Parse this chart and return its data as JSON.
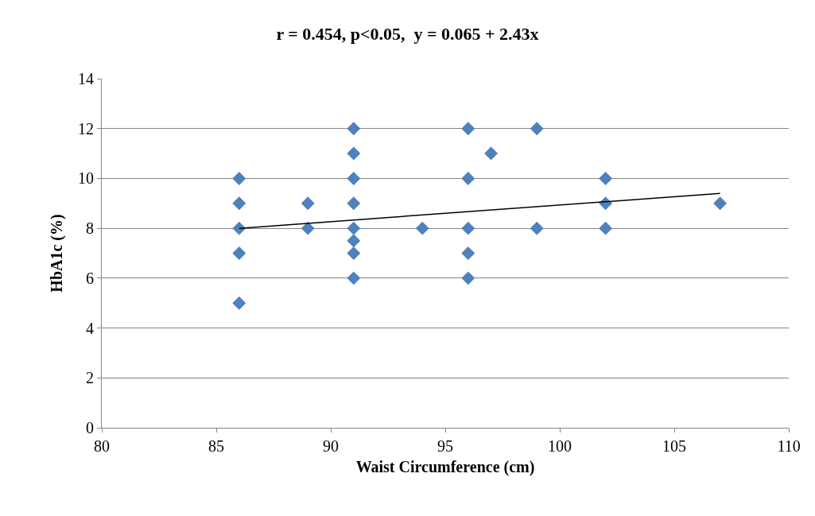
{
  "chart_data": {
    "type": "scatter",
    "title": "r = 0.454, p<0.05,  y = 0.065 + 2.43x",
    "xlabel": "Waist Circumference (cm)",
    "ylabel": "HbA1c (%)",
    "xlim": [
      80,
      110
    ],
    "xticks": [
      80,
      85,
      90,
      95,
      100,
      105,
      110
    ],
    "ylim": [
      0,
      14
    ],
    "yticks": [
      0,
      2,
      4,
      6,
      8,
      10,
      12,
      14
    ],
    "grid": "y",
    "marker": "diamond",
    "series": [
      {
        "color": "#4f81bd",
        "x": [
          86,
          86,
          86,
          86,
          86,
          89,
          89,
          91,
          91,
          91,
          91,
          91,
          91,
          91,
          91,
          94,
          96,
          96,
          96,
          96,
          96,
          97,
          99,
          99,
          102,
          102,
          102,
          107
        ],
        "values": [
          10,
          9,
          8,
          7,
          5,
          9,
          8,
          12,
          11,
          10,
          9,
          8,
          7.5,
          7,
          6,
          8,
          12,
          10,
          8,
          7,
          6,
          11,
          12,
          8,
          10,
          9,
          8,
          9
        ]
      },
      {
        "type": "line",
        "color": "#000000",
        "x": [
          86,
          107
        ],
        "values": [
          8.0,
          9.4
        ],
        "marker": "none"
      }
    ]
  }
}
